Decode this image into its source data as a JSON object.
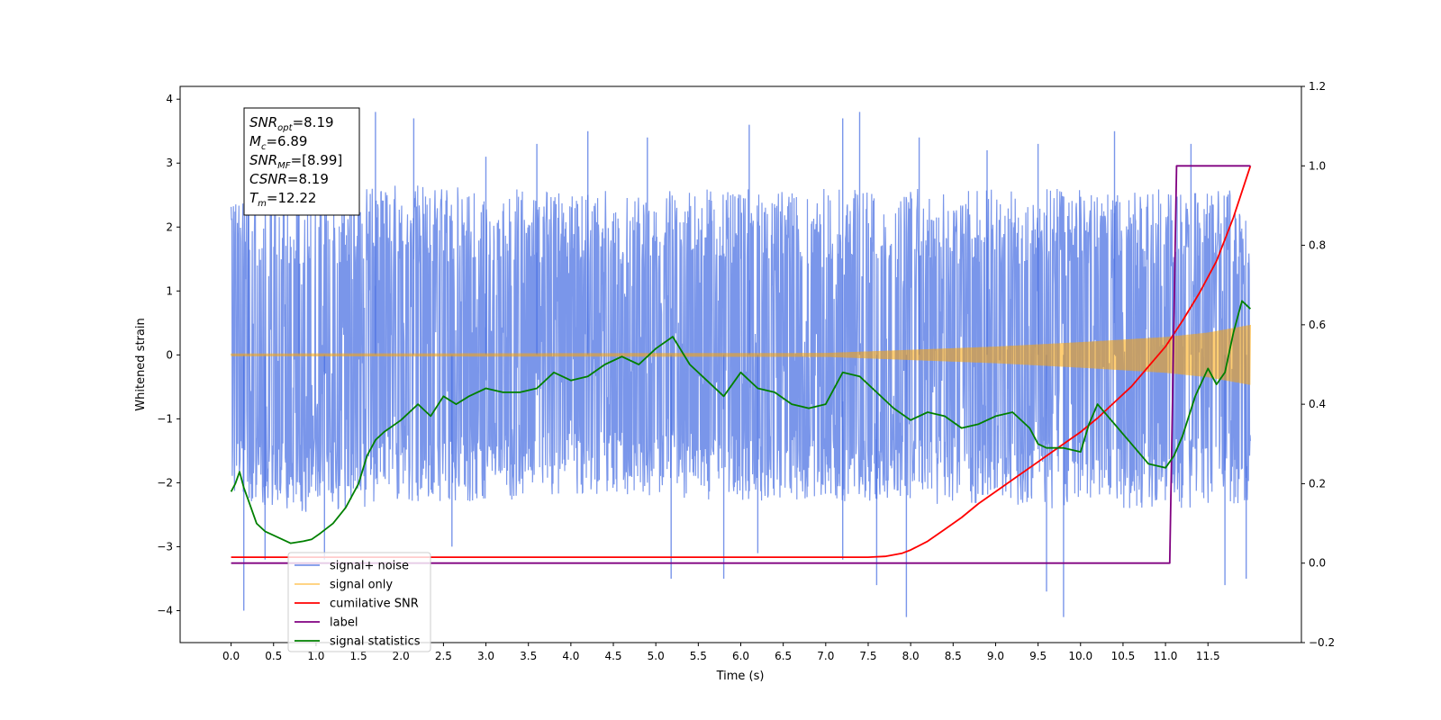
{
  "chart_data": {
    "type": "line",
    "title": "",
    "xlabel": "Time (s)",
    "ylabel": "Whitened strain",
    "ylabel_right": "",
    "xlim": [
      -0.6,
      12.6
    ],
    "ylim": [
      -4.5,
      4.2
    ],
    "ylim_right": [
      -0.2,
      1.2
    ],
    "x_ticks": [
      0.0,
      0.5,
      1.0,
      1.5,
      2.0,
      2.5,
      3.0,
      3.5,
      4.0,
      4.5,
      5.0,
      5.5,
      6.0,
      6.5,
      7.0,
      7.5,
      8.0,
      8.5,
      9.0,
      9.5,
      10.0,
      10.5,
      11.0,
      11.5
    ],
    "x_tick_labels": [
      "0.0",
      "0.5",
      "1.0",
      "1.5",
      "2.0",
      "2.5",
      "3.0",
      "3.5",
      "4.0",
      "4.5",
      "5.0",
      "5.5",
      "6.0",
      "6.5",
      "7.0",
      "7.5",
      "8.0",
      "8.5",
      "9.0",
      "9.5",
      "10.0",
      "10.5",
      "11.0",
      "11.5"
    ],
    "y_ticks": [
      -4,
      -3,
      -2,
      -1,
      0,
      1,
      2,
      3,
      4
    ],
    "y_tick_labels": [
      "−4",
      "−3",
      "−2",
      "−1",
      "0",
      "1",
      "2",
      "3",
      "4"
    ],
    "y_ticks_right": [
      -0.2,
      0.0,
      0.2,
      0.4,
      0.6,
      0.8,
      1.0,
      1.2
    ],
    "y_tick_labels_right": [
      "−0.2",
      "0.0",
      "0.2",
      "0.4",
      "0.6",
      "0.8",
      "1.0",
      "1.2"
    ],
    "grid": false,
    "legend_position": "lower-left",
    "info_box": {
      "lines": [
        {
          "var": "SNR",
          "sub": "opt",
          "value": "=8.19"
        },
        {
          "var": "M",
          "sub": "c",
          "value": "=6.89"
        },
        {
          "var": "SNR",
          "sub": "MF",
          "value": "=[8.99]"
        },
        {
          "var": "CSNR",
          "sub": "",
          "value": "=8.19"
        },
        {
          "var": "T",
          "sub": "m",
          "value": "=12.22"
        }
      ]
    },
    "series": [
      {
        "name": "signal+ noise",
        "axis": "left",
        "color": "#4169e1",
        "kind": "noise_band",
        "x_range": [
          0.0,
          12.0
        ],
        "upper_envelope": [
          [
            0.0,
            2.4
          ],
          [
            0.5,
            2.6
          ],
          [
            1.0,
            2.5
          ],
          [
            1.5,
            2.6
          ],
          [
            2.0,
            2.7
          ],
          [
            3.0,
            2.6
          ],
          [
            4.0,
            2.6
          ],
          [
            5.0,
            2.6
          ],
          [
            6.0,
            2.6
          ],
          [
            7.0,
            2.6
          ],
          [
            8.0,
            2.6
          ],
          [
            9.0,
            2.6
          ],
          [
            10.0,
            2.6
          ],
          [
            11.0,
            2.6
          ],
          [
            12.0,
            2.6
          ]
        ],
        "lower_envelope": [
          [
            0.0,
            -2.2
          ],
          [
            0.5,
            -2.4
          ],
          [
            1.0,
            -2.5
          ],
          [
            2.0,
            -2.3
          ],
          [
            3.0,
            -2.3
          ],
          [
            4.0,
            -2.2
          ],
          [
            5.0,
            -2.2
          ],
          [
            6.0,
            -2.3
          ],
          [
            7.0,
            -2.3
          ],
          [
            8.0,
            -2.3
          ],
          [
            9.0,
            -2.4
          ],
          [
            10.0,
            -2.4
          ],
          [
            11.0,
            -2.4
          ],
          [
            12.0,
            -2.4
          ]
        ],
        "spikes": [
          [
            0.2,
            3.4
          ],
          [
            0.4,
            -3.2
          ],
          [
            0.15,
            -4.0
          ],
          [
            0.8,
            3.2
          ],
          [
            1.1,
            -3.2
          ],
          [
            1.7,
            3.8
          ],
          [
            2.15,
            3.7
          ],
          [
            2.6,
            -3.0
          ],
          [
            3.0,
            3.1
          ],
          [
            3.6,
            3.3
          ],
          [
            4.2,
            3.5
          ],
          [
            4.9,
            3.4
          ],
          [
            5.18,
            -3.5
          ],
          [
            5.8,
            -3.5
          ],
          [
            6.1,
            3.6
          ],
          [
            6.2,
            -3.1
          ],
          [
            7.2,
            -3.2
          ],
          [
            7.2,
            3.7
          ],
          [
            7.4,
            3.8
          ],
          [
            7.6,
            -3.6
          ],
          [
            7.95,
            -4.1
          ],
          [
            8.1,
            3.4
          ],
          [
            8.9,
            3.2
          ],
          [
            9.5,
            3.3
          ],
          [
            9.6,
            -3.7
          ],
          [
            9.8,
            -4.1
          ],
          [
            10.4,
            3.5
          ],
          [
            11.3,
            3.3
          ],
          [
            11.7,
            -3.6
          ],
          [
            11.95,
            -3.5
          ]
        ]
      },
      {
        "name": "signal only",
        "axis": "left",
        "color": "#ffa500",
        "kind": "chirp",
        "amplitude": [
          [
            0.0,
            0.02
          ],
          [
            7.0,
            0.03
          ],
          [
            8.0,
            0.08
          ],
          [
            9.0,
            0.13
          ],
          [
            10.0,
            0.2
          ],
          [
            11.0,
            0.28
          ],
          [
            11.5,
            0.35
          ],
          [
            12.0,
            0.47
          ]
        ]
      },
      {
        "name": "cumilative SNR",
        "axis": "right",
        "color": "#ff0000",
        "x": [
          0.0,
          7.5,
          7.7,
          7.9,
          8.0,
          8.2,
          8.4,
          8.6,
          8.8,
          9.0,
          9.2,
          9.4,
          9.6,
          9.8,
          10.0,
          10.2,
          10.4,
          10.6,
          10.8,
          11.0,
          11.2,
          11.4,
          11.6,
          11.8,
          12.0
        ],
        "values": [
          0.015,
          0.015,
          0.017,
          0.025,
          0.033,
          0.055,
          0.085,
          0.115,
          0.15,
          0.18,
          0.21,
          0.24,
          0.27,
          0.3,
          0.33,
          0.365,
          0.405,
          0.445,
          0.495,
          0.545,
          0.61,
          0.68,
          0.76,
          0.87,
          1.0
        ]
      },
      {
        "name": "label",
        "axis": "right",
        "color": "#800080",
        "x": [
          0.0,
          11.05,
          11.13,
          12.0
        ],
        "values": [
          0.0,
          0.0,
          1.0,
          1.0
        ]
      },
      {
        "name": "signal statistics",
        "axis": "right",
        "color": "#008000",
        "x": [
          0.0,
          0.05,
          0.1,
          0.15,
          0.2,
          0.3,
          0.4,
          0.6,
          0.7,
          0.85,
          0.95,
          1.05,
          1.2,
          1.35,
          1.5,
          1.6,
          1.7,
          1.8,
          2.0,
          2.2,
          2.35,
          2.5,
          2.65,
          2.8,
          3.0,
          3.2,
          3.4,
          3.6,
          3.8,
          4.0,
          4.2,
          4.4,
          4.6,
          4.8,
          5.0,
          5.2,
          5.4,
          5.6,
          5.8,
          6.0,
          6.2,
          6.4,
          6.6,
          6.8,
          7.0,
          7.2,
          7.4,
          7.6,
          7.8,
          8.0,
          8.2,
          8.4,
          8.6,
          8.8,
          9.0,
          9.2,
          9.4,
          9.5,
          9.6,
          9.8,
          10.0,
          10.1,
          10.2,
          10.4,
          10.6,
          10.8,
          11.0,
          11.1,
          11.2,
          11.35,
          11.5,
          11.6,
          11.7,
          11.8,
          11.9,
          12.0
        ],
        "values": [
          0.18,
          0.2,
          0.23,
          0.19,
          0.16,
          0.1,
          0.08,
          0.06,
          0.05,
          0.055,
          0.06,
          0.075,
          0.1,
          0.14,
          0.2,
          0.27,
          0.31,
          0.33,
          0.36,
          0.4,
          0.37,
          0.42,
          0.4,
          0.42,
          0.44,
          0.43,
          0.43,
          0.44,
          0.48,
          0.46,
          0.47,
          0.5,
          0.52,
          0.5,
          0.54,
          0.57,
          0.5,
          0.46,
          0.42,
          0.48,
          0.44,
          0.43,
          0.4,
          0.39,
          0.4,
          0.48,
          0.47,
          0.43,
          0.39,
          0.36,
          0.38,
          0.37,
          0.34,
          0.35,
          0.37,
          0.38,
          0.34,
          0.3,
          0.29,
          0.29,
          0.28,
          0.35,
          0.4,
          0.35,
          0.3,
          0.25,
          0.24,
          0.27,
          0.32,
          0.42,
          0.49,
          0.45,
          0.48,
          0.58,
          0.66,
          0.64
        ]
      }
    ]
  }
}
